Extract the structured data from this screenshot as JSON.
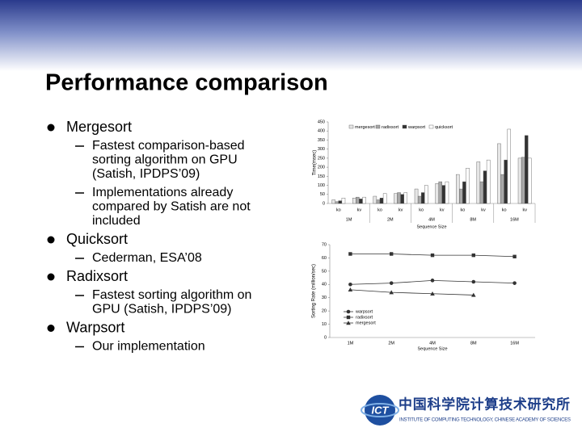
{
  "title": "Performance comparison",
  "bullets": [
    {
      "text": "Mergesort",
      "sub": [
        [
          "Fastest comparison-based",
          "sorting algorithm on GPU",
          "(Satish, IPDPS’09)"
        ],
        [
          "Implementations already",
          "compared by Satish are not",
          "included"
        ]
      ]
    },
    {
      "text": "Quicksort",
      "sub": [
        [
          "Cederman, ESA’08"
        ]
      ]
    },
    {
      "text": "Radixsort",
      "sub": [
        [
          "Fastest sorting algorithm on",
          "GPU (Satish, IPDPS’09)"
        ]
      ]
    },
    {
      "text": "Warpsort",
      "sub": [
        [
          "Our implementation"
        ]
      ]
    }
  ],
  "chart_data": [
    {
      "type": "bar",
      "y_label": "Time(msec)",
      "x_label": "Sequence Size",
      "categories": [
        "ko",
        "kv",
        "ko",
        "kv",
        "ko",
        "kv",
        "ko",
        "kv",
        "ko",
        "kv"
      ],
      "groups": [
        "1M",
        "2M",
        "4M",
        "8M",
        "16M"
      ],
      "ylim": [
        0,
        450
      ],
      "yticks": [
        0,
        50,
        100,
        150,
        200,
        250,
        300,
        350,
        400,
        450
      ],
      "series": [
        {
          "name": "mergesort",
          "color": "#e6e6e6",
          "values": [
            20,
            30,
            40,
            55,
            80,
            110,
            160,
            230,
            330,
            250
          ]
        },
        {
          "name": "radixsort",
          "color": "#a8a8a8",
          "values": [
            10,
            35,
            20,
            60,
            40,
            120,
            80,
            120,
            160,
            255
          ]
        },
        {
          "name": "warpsort",
          "color": "#333333",
          "values": [
            15,
            25,
            30,
            50,
            60,
            100,
            120,
            180,
            240,
            375
          ]
        },
        {
          "name": "quicksort",
          "color": "#ffffff",
          "values": [
            30,
            35,
            55,
            60,
            100,
            120,
            195,
            240,
            410,
            250
          ]
        }
      ]
    },
    {
      "type": "line",
      "y_label": "Sorting Rate (million/sec)",
      "x_label": "Sequence Size",
      "categories": [
        "1M",
        "2M",
        "4M",
        "8M",
        "16M"
      ],
      "ylim": [
        0,
        70
      ],
      "yticks": [
        0,
        10,
        20,
        30,
        40,
        50,
        60,
        70
      ],
      "series": [
        {
          "name": "warpsort",
          "color": "#333333",
          "marker": "circle",
          "values": [
            40,
            41,
            43,
            42,
            41
          ]
        },
        {
          "name": "radixsort",
          "color": "#333333",
          "marker": "square",
          "values": [
            63,
            63,
            62,
            62,
            61
          ]
        },
        {
          "name": "mergesort",
          "color": "#333333",
          "marker": "triangle",
          "values": [
            36,
            34,
            33,
            32,
            null
          ]
        }
      ]
    }
  ],
  "logo": {
    "mark": "ICT",
    "name": "中国科学院计算技术研究所",
    "english": "INSTITUTE OF COMPUTING TECHNOLOGY, CHINESE ACADEMY OF SCIENCES"
  }
}
